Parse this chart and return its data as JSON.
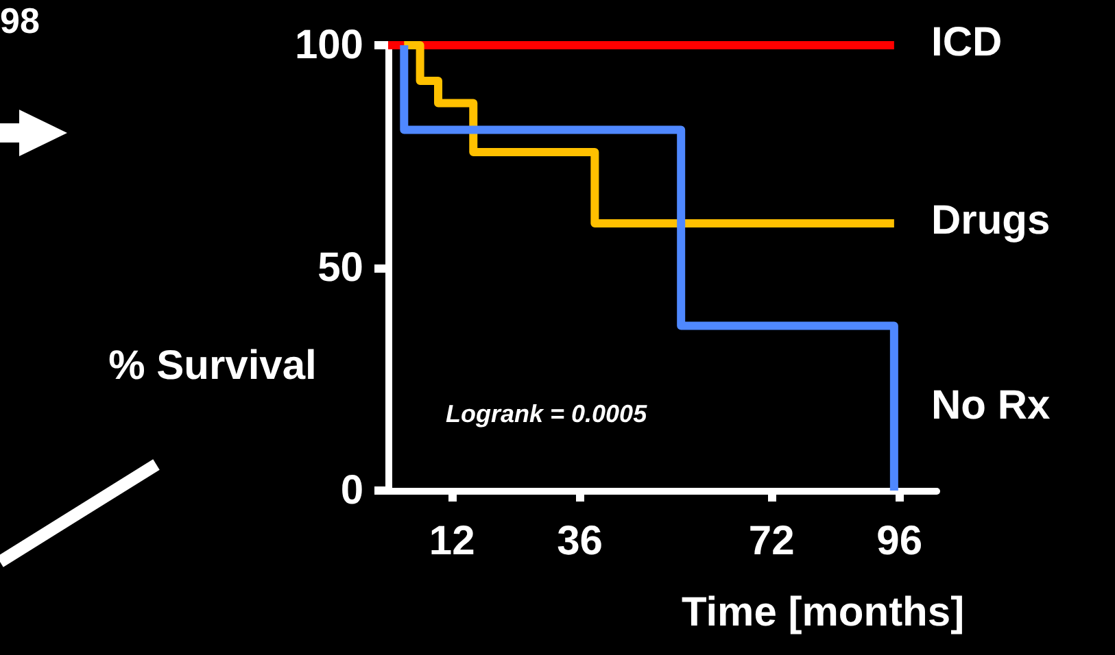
{
  "chart_data": {
    "type": "step",
    "xlabel": "Time [months]",
    "ylabel": "% Survival",
    "annotations": [
      "98",
      "Logrank = 0.0005"
    ],
    "xlim": [
      0,
      103
    ],
    "xticks": [
      12,
      36,
      72,
      96
    ],
    "ylim": [
      0,
      100
    ],
    "yticks": [
      0,
      50,
      100
    ],
    "grid": false,
    "legend": false,
    "marker": "none",
    "line_style": "solid",
    "series": [
      {
        "name": "ICD",
        "color": "#ff0000",
        "x": [
          0,
          95
        ],
        "values": [
          100,
          100
        ]
      },
      {
        "name": "Drugs",
        "color": "#ffc000",
        "x": [
          3,
          6,
          9.4,
          16,
          38.8,
          95
        ],
        "values": [
          100,
          92,
          87,
          76,
          60,
          60
        ]
      },
      {
        "name": "No Rx",
        "color": "#4f88ff",
        "x": [
          3,
          3,
          55,
          95
        ],
        "values": [
          100,
          81,
          37,
          0
        ]
      }
    ]
  }
}
